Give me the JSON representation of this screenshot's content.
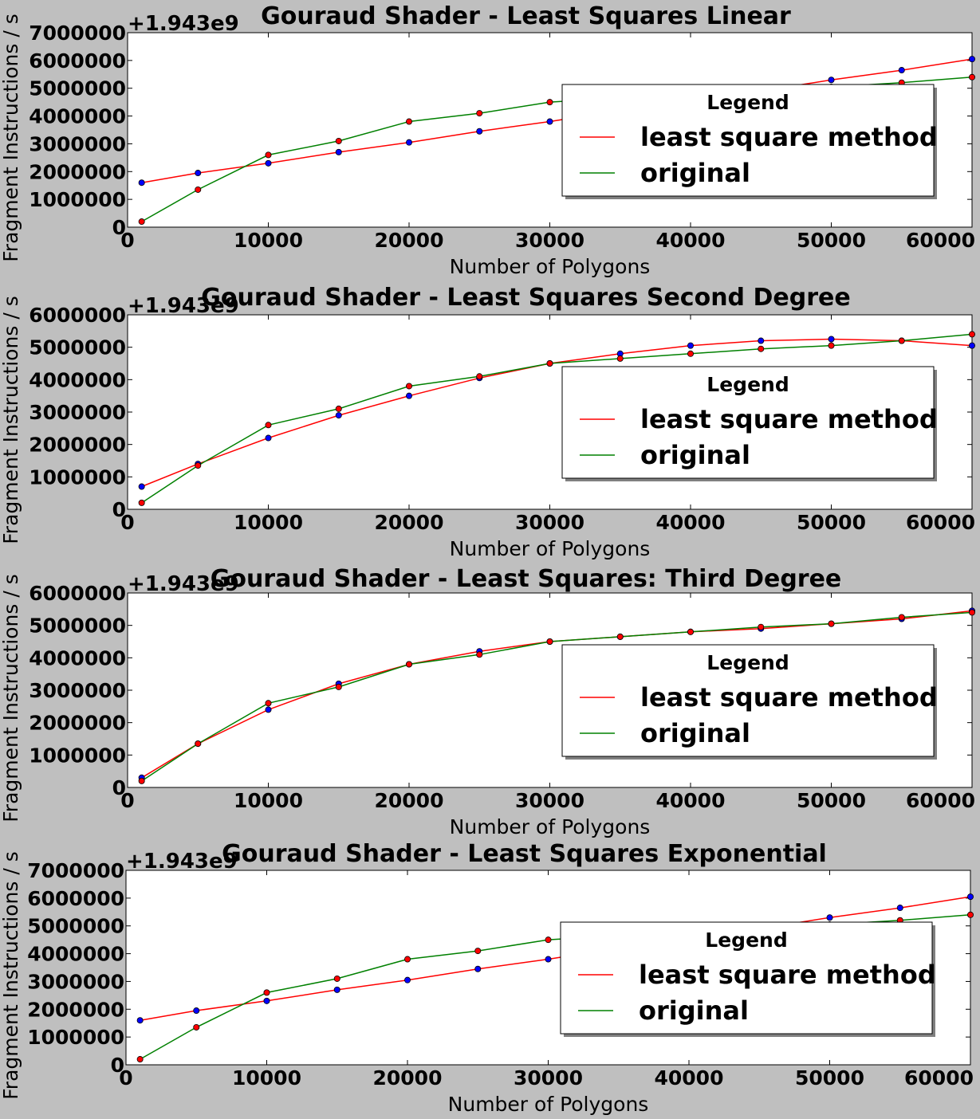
{
  "chart_data": [
    {
      "type": "line",
      "title": "Gouraud Shader - Least Squares Linear",
      "xlabel": "Number of Polygons",
      "ylabel": "Fragment Instructions / s",
      "offset_label": "+1.943e9",
      "xlim": [
        0,
        60000
      ],
      "ylim": [
        0,
        7000000
      ],
      "xticks": [
        0,
        10000,
        20000,
        30000,
        40000,
        50000,
        60000
      ],
      "yticks": [
        0,
        1000000,
        2000000,
        3000000,
        4000000,
        5000000,
        6000000,
        7000000
      ],
      "legend": {
        "title": "Legend",
        "position": "center-right"
      },
      "x": [
        1000,
        5000,
        10000,
        15000,
        20000,
        25000,
        30000,
        35000,
        40000,
        45000,
        50000,
        55000,
        60000
      ],
      "series": [
        {
          "name": "least square method",
          "color": "#ff0000",
          "marker_color": "#0000ff",
          "values": [
            1600000,
            1950000,
            2300000,
            2700000,
            3050000,
            3450000,
            3800000,
            4200000,
            4550000,
            4900000,
            5300000,
            5650000,
            6050000
          ]
        },
        {
          "name": "original",
          "color": "#008000",
          "marker_color": "#ff0000",
          "values": [
            200000,
            1350000,
            2600000,
            3100000,
            3800000,
            4100000,
            4500000,
            4650000,
            4800000,
            4950000,
            5050000,
            5200000,
            5400000
          ]
        }
      ]
    },
    {
      "type": "line",
      "title": "Gouraud Shader - Least Squares Second Degree",
      "xlabel": "Number of Polygons",
      "ylabel": "Fragment Instructions / s",
      "offset_label": "+1.943e9",
      "xlim": [
        0,
        60000
      ],
      "ylim": [
        0,
        6000000
      ],
      "xticks": [
        0,
        10000,
        20000,
        30000,
        40000,
        50000,
        60000
      ],
      "yticks": [
        0,
        1000000,
        2000000,
        3000000,
        4000000,
        5000000,
        6000000
      ],
      "legend": {
        "title": "Legend",
        "position": "center-right"
      },
      "x": [
        1000,
        5000,
        10000,
        15000,
        20000,
        25000,
        30000,
        35000,
        40000,
        45000,
        50000,
        55000,
        60000
      ],
      "series": [
        {
          "name": "least square method",
          "color": "#ff0000",
          "marker_color": "#0000ff",
          "values": [
            700000,
            1400000,
            2200000,
            2900000,
            3500000,
            4050000,
            4500000,
            4800000,
            5050000,
            5200000,
            5250000,
            5200000,
            5050000
          ]
        },
        {
          "name": "original",
          "color": "#008000",
          "marker_color": "#ff0000",
          "values": [
            200000,
            1350000,
            2600000,
            3100000,
            3800000,
            4100000,
            4500000,
            4650000,
            4800000,
            4950000,
            5050000,
            5200000,
            5400000
          ]
        }
      ]
    },
    {
      "type": "line",
      "title": "Gouraud Shader - Least Squares: Third Degree",
      "xlabel": "Number of Polygons",
      "ylabel": "Fragment Instructions / s",
      "offset_label": "+1.943e9",
      "xlim": [
        0,
        60000
      ],
      "ylim": [
        0,
        6000000
      ],
      "xticks": [
        0,
        10000,
        20000,
        30000,
        40000,
        50000,
        60000
      ],
      "yticks": [
        0,
        1000000,
        2000000,
        3000000,
        4000000,
        5000000,
        6000000
      ],
      "legend": {
        "title": "Legend",
        "position": "center-right"
      },
      "x": [
        1000,
        5000,
        10000,
        15000,
        20000,
        25000,
        30000,
        35000,
        40000,
        45000,
        50000,
        55000,
        60000
      ],
      "series": [
        {
          "name": "least square method",
          "color": "#ff0000",
          "marker_color": "#0000ff",
          "values": [
            300000,
            1350000,
            2400000,
            3200000,
            3800000,
            4200000,
            4500000,
            4650000,
            4800000,
            4900000,
            5050000,
            5200000,
            5450000
          ]
        },
        {
          "name": "original",
          "color": "#008000",
          "marker_color": "#ff0000",
          "values": [
            200000,
            1350000,
            2600000,
            3100000,
            3800000,
            4100000,
            4500000,
            4650000,
            4800000,
            4950000,
            5050000,
            5250000,
            5400000
          ]
        }
      ]
    },
    {
      "type": "line",
      "title": "Gouraud Shader - Least Squares Exponential",
      "xlabel": "Number of Polygons",
      "ylabel": "Fragment Instructions / s",
      "offset_label": "+1.943e9",
      "xlim": [
        0,
        60000
      ],
      "ylim": [
        0,
        7000000
      ],
      "xticks": [
        0,
        10000,
        20000,
        30000,
        40000,
        50000,
        60000
      ],
      "yticks": [
        0,
        1000000,
        2000000,
        3000000,
        4000000,
        5000000,
        6000000,
        7000000
      ],
      "legend": {
        "title": "Legend",
        "position": "center-right"
      },
      "x": [
        1000,
        5000,
        10000,
        15000,
        20000,
        25000,
        30000,
        35000,
        40000,
        45000,
        50000,
        55000,
        60000
      ],
      "series": [
        {
          "name": "least square method",
          "color": "#ff0000",
          "marker_color": "#0000ff",
          "values": [
            1600000,
            1950000,
            2300000,
            2700000,
            3050000,
            3450000,
            3800000,
            4200000,
            4550000,
            4900000,
            5300000,
            5650000,
            6050000
          ]
        },
        {
          "name": "original",
          "color": "#008000",
          "marker_color": "#ff0000",
          "values": [
            200000,
            1350000,
            2600000,
            3100000,
            3800000,
            4100000,
            4500000,
            4650000,
            4800000,
            4950000,
            5050000,
            5200000,
            5400000
          ]
        }
      ]
    }
  ]
}
